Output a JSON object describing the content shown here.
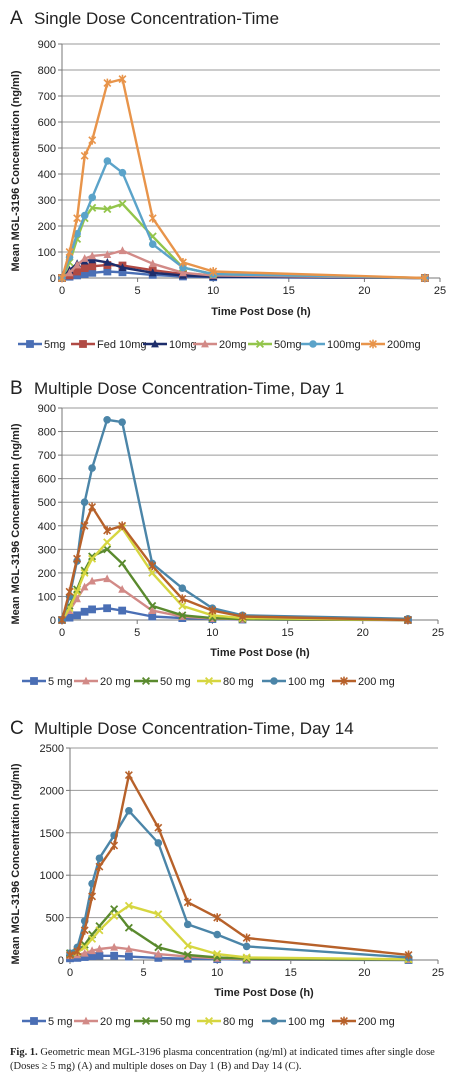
{
  "chart_data": [
    {
      "type": "line",
      "panel_letter": "A",
      "title": "Single Dose Concentration-Time",
      "xlabel": "Time Post Dose (h)",
      "ylabel": "Mean MGL-3196 Concentration (ng/ml)",
      "xlim": [
        0,
        25
      ],
      "ylim": [
        0,
        900
      ],
      "xticks": [
        0,
        5,
        10,
        15,
        20,
        25
      ],
      "yticks": [
        0,
        100,
        200,
        300,
        400,
        500,
        600,
        700,
        800,
        900
      ],
      "grid": true,
      "legend_position": "bottom",
      "series": [
        {
          "name": "5mg",
          "color": "#4a6fb5",
          "marker": "square",
          "x": [
            0,
            0.5,
            1,
            1.5,
            2,
            3,
            4,
            6,
            8,
            10,
            24
          ],
          "y": [
            0,
            5,
            10,
            15,
            20,
            25,
            22,
            12,
            6,
            3,
            0
          ]
        },
        {
          "name": "Fed 10mg",
          "color": "#b04a44",
          "marker": "square",
          "x": [
            0,
            0.5,
            1,
            1.5,
            2,
            3,
            4,
            6,
            8,
            10,
            24
          ],
          "y": [
            0,
            10,
            25,
            38,
            45,
            50,
            48,
            30,
            15,
            8,
            0
          ]
        },
        {
          "name": "10mg",
          "color": "#1d2d6b",
          "marker": "triangle",
          "x": [
            0,
            0.5,
            1,
            1.5,
            2,
            3,
            4,
            6,
            8,
            10,
            24
          ],
          "y": [
            0,
            30,
            55,
            65,
            70,
            60,
            40,
            20,
            10,
            5,
            0
          ]
        },
        {
          "name": "20mg",
          "color": "#d28a87",
          "marker": "triangle",
          "x": [
            0,
            0.5,
            1,
            1.5,
            2,
            3,
            4,
            6,
            8,
            10,
            24
          ],
          "y": [
            0,
            20,
            50,
            75,
            85,
            90,
            105,
            55,
            20,
            10,
            0
          ]
        },
        {
          "name": "50mg",
          "color": "#93c54b",
          "marker": "x",
          "x": [
            0,
            0.5,
            1,
            1.5,
            2,
            3,
            4,
            6,
            8,
            10,
            24
          ],
          "y": [
            0,
            60,
            150,
            230,
            270,
            265,
            285,
            160,
            40,
            15,
            0
          ]
        },
        {
          "name": "100mg",
          "color": "#5ba3c9",
          "marker": "circle",
          "x": [
            0,
            0.5,
            1,
            1.5,
            2,
            3,
            4,
            6,
            8,
            10,
            24
          ],
          "y": [
            0,
            80,
            170,
            240,
            310,
            450,
            405,
            130,
            40,
            15,
            0
          ]
        },
        {
          "name": "200mg",
          "color": "#e8944a",
          "marker": "star",
          "x": [
            0,
            0.5,
            1,
            1.5,
            2,
            3,
            4,
            6,
            8,
            10,
            24
          ],
          "y": [
            0,
            100,
            230,
            470,
            530,
            750,
            765,
            230,
            60,
            25,
            0
          ]
        }
      ]
    },
    {
      "type": "line",
      "panel_letter": "B",
      "title": "Multiple Dose Concentration-Time, Day 1",
      "xlabel": "Time Post Dose (h)",
      "ylabel": "Mean MGL-3196 Concentration (ng/ml)",
      "xlim": [
        0,
        25
      ],
      "ylim": [
        0,
        900
      ],
      "xticks": [
        0,
        5,
        10,
        15,
        20,
        25
      ],
      "yticks": [
        0,
        100,
        200,
        300,
        400,
        500,
        600,
        700,
        800,
        900
      ],
      "grid": true,
      "legend_position": "bottom",
      "series": [
        {
          "name": "5 mg",
          "color": "#4a6fb5",
          "marker": "square",
          "x": [
            0,
            0.5,
            1,
            1.5,
            2,
            3,
            4,
            6,
            8,
            10,
            12,
            23
          ],
          "y": [
            0,
            10,
            20,
            35,
            45,
            50,
            40,
            15,
            8,
            4,
            2,
            0
          ]
        },
        {
          "name": "20 mg",
          "color": "#d28a87",
          "marker": "triangle",
          "x": [
            0,
            0.5,
            1,
            1.5,
            2,
            3,
            4,
            6,
            8,
            10,
            12,
            23
          ],
          "y": [
            0,
            40,
            90,
            140,
            165,
            175,
            130,
            40,
            15,
            6,
            3,
            0
          ]
        },
        {
          "name": "50 mg",
          "color": "#5a8a2e",
          "marker": "x",
          "x": [
            0,
            0.5,
            1,
            1.5,
            2,
            3,
            4,
            6,
            8,
            10,
            12,
            23
          ],
          "y": [
            0,
            60,
            130,
            210,
            270,
            300,
            240,
            60,
            20,
            8,
            4,
            0
          ]
        },
        {
          "name": "80 mg",
          "color": "#d6d640",
          "marker": "x",
          "x": [
            0,
            0.5,
            1,
            1.5,
            2,
            3,
            4,
            6,
            8,
            10,
            12,
            23
          ],
          "y": [
            0,
            50,
            120,
            200,
            260,
            330,
            390,
            200,
            60,
            20,
            8,
            0
          ]
        },
        {
          "name": "100 mg",
          "color": "#4b85a8",
          "marker": "circle",
          "x": [
            0,
            0.5,
            1,
            1.5,
            2,
            3,
            4,
            6,
            8,
            10,
            12,
            23
          ],
          "y": [
            0,
            100,
            250,
            500,
            645,
            850,
            840,
            240,
            135,
            50,
            20,
            5
          ]
        },
        {
          "name": "200 mg",
          "color": "#b7612a",
          "marker": "star",
          "x": [
            0,
            0.5,
            1,
            1.5,
            2,
            3,
            4,
            6,
            8,
            10,
            12,
            23
          ],
          "y": [
            0,
            120,
            260,
            400,
            480,
            380,
            400,
            230,
            90,
            40,
            15,
            0
          ]
        }
      ]
    },
    {
      "type": "line",
      "panel_letter": "C",
      "title": "Multiple Dose Concentration-Time, Day 14",
      "xlabel": "Time Post Dose (h)",
      "ylabel": "Mean MGL-3196 Concentration (ng/ml)",
      "xlim": [
        0,
        25
      ],
      "ylim": [
        0,
        2500
      ],
      "xticks": [
        0,
        5,
        10,
        15,
        20,
        25
      ],
      "yticks": [
        0,
        500,
        1000,
        1500,
        2000,
        2500
      ],
      "grid": true,
      "legend_position": "bottom",
      "series": [
        {
          "name": "5 mg",
          "color": "#4a6fb5",
          "marker": "square",
          "x": [
            0,
            0.5,
            1,
            1.5,
            2,
            3,
            4,
            6,
            8,
            10,
            12,
            23
          ],
          "y": [
            20,
            25,
            35,
            45,
            50,
            50,
            40,
            25,
            15,
            10,
            5,
            0
          ]
        },
        {
          "name": "20 mg",
          "color": "#d28a87",
          "marker": "triangle",
          "x": [
            0,
            0.5,
            1,
            1.5,
            2,
            3,
            4,
            6,
            8,
            10,
            12,
            23
          ],
          "y": [
            50,
            60,
            80,
            110,
            130,
            150,
            130,
            70,
            40,
            20,
            10,
            5
          ]
        },
        {
          "name": "50 mg",
          "color": "#5a8a2e",
          "marker": "x",
          "x": [
            0,
            0.5,
            1,
            1.5,
            2,
            3,
            4,
            6,
            8,
            10,
            12,
            23
          ],
          "y": [
            80,
            100,
            180,
            300,
            400,
            600,
            380,
            150,
            60,
            30,
            15,
            5
          ]
        },
        {
          "name": "80 mg",
          "color": "#d6d640",
          "marker": "x",
          "x": [
            0,
            0.5,
            1,
            1.5,
            2,
            3,
            4,
            6,
            8,
            10,
            12,
            23
          ],
          "y": [
            60,
            90,
            150,
            250,
            350,
            520,
            640,
            540,
            170,
            70,
            30,
            10
          ]
        },
        {
          "name": "100 mg",
          "color": "#4b85a8",
          "marker": "circle",
          "x": [
            0,
            0.5,
            1,
            1.5,
            2,
            3,
            4,
            6,
            8,
            10,
            12,
            23
          ],
          "y": [
            80,
            150,
            460,
            900,
            1200,
            1470,
            1760,
            1380,
            420,
            300,
            160,
            30
          ]
        },
        {
          "name": "200 mg",
          "color": "#b7612a",
          "marker": "star",
          "x": [
            0,
            0.5,
            1,
            1.5,
            2,
            3,
            4,
            6,
            8,
            10,
            12,
            23
          ],
          "y": [
            60,
            100,
            350,
            750,
            1100,
            1350,
            2180,
            1560,
            680,
            500,
            260,
            60
          ]
        }
      ]
    }
  ],
  "caption": {
    "label": "Fig. 1.",
    "text": "Geometric mean MGL-3196 plasma concentration (ng/ml) at indicated times after single dose (Doses ≥ 5 mg) (A) and multiple doses on Day 1 (B) and Day 14 (C)."
  }
}
